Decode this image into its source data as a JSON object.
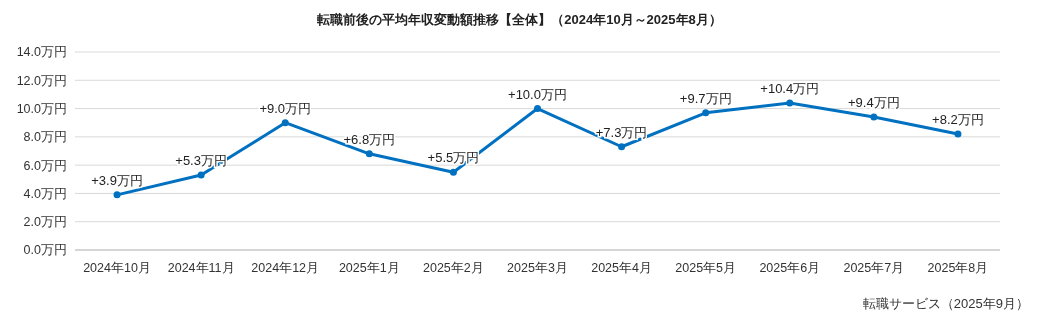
{
  "chart_data": {
    "type": "line",
    "title": "転職前後の平均年収変動額推移【全体】（2024年10月～2025年8月）",
    "categories": [
      "2024年10月",
      "2024年11月",
      "2024年12月",
      "2025年1月",
      "2025年2月",
      "2025年3月",
      "2025年4月",
      "2025年5月",
      "2025年6月",
      "2025年7月",
      "2025年8月"
    ],
    "series": [
      {
        "color": "#0070c0",
        "values": [
          3.9,
          5.3,
          9.0,
          6.8,
          5.5,
          10.0,
          7.3,
          9.7,
          10.4,
          9.4,
          8.2
        ],
        "value_labels": [
          "+3.9万円",
          "+5.3万円",
          "+9.0万円",
          "+6.8万円",
          "+5.5万円",
          "+10.0万円",
          "+7.3万円",
          "+9.7万円",
          "+10.4万円",
          "+9.4万円",
          "+8.2万円"
        ]
      }
    ],
    "ylim": [
      0,
      14
    ],
    "yticks": [
      {
        "value": 0,
        "label": "0.0万円"
      },
      {
        "value": 2,
        "label": "2.0万円"
      },
      {
        "value": 4,
        "label": "4.0万円"
      },
      {
        "value": 6,
        "label": "6.0万円"
      },
      {
        "value": 8,
        "label": "8.0万円"
      },
      {
        "value": 10,
        "label": "10.0万円"
      },
      {
        "value": 12,
        "label": "12.0万円"
      },
      {
        "value": 14,
        "label": "14.0万円"
      }
    ],
    "grid": "y",
    "marker": "circle",
    "line_style": "solid",
    "annotations": [
      "転職サービス（2025年9月）"
    ]
  }
}
